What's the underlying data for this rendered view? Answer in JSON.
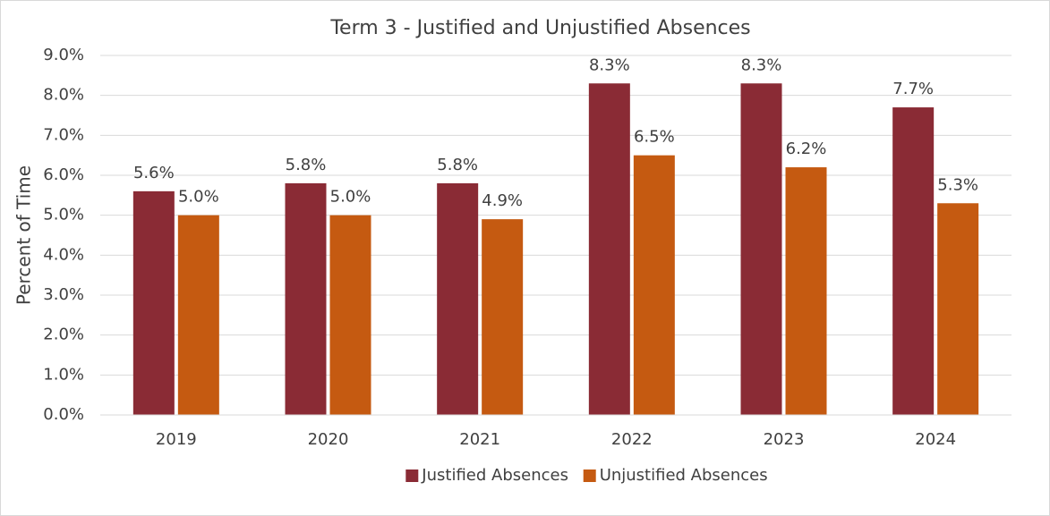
{
  "chart_data": {
    "type": "bar",
    "title": "Term 3 - Justified and Unjustified Absences",
    "y_label": "Percent of Time",
    "categories": [
      "2019",
      "2020",
      "2021",
      "2022",
      "2023",
      "2024"
    ],
    "series": [
      {
        "name": "Justified Absences",
        "color": "#8a2b35",
        "values": [
          5.6,
          5.8,
          5.8,
          8.3,
          8.3,
          7.7
        ],
        "value_labels": [
          "5.6%",
          "5.8%",
          "5.8%",
          "8.3%",
          "8.3%",
          "7.7%"
        ]
      },
      {
        "name": "Unjustified Absences",
        "color": "#c55a11",
        "values": [
          5.0,
          5.0,
          4.9,
          6.5,
          6.2,
          5.3
        ],
        "value_labels": [
          "5.0%",
          "5.0%",
          "4.9%",
          "6.5%",
          "6.2%",
          "5.3%"
        ]
      }
    ],
    "ylim": [
      0,
      9
    ],
    "yticks": [
      {
        "value": 0,
        "label": "0.0%"
      },
      {
        "value": 1,
        "label": "1.0%"
      },
      {
        "value": 2,
        "label": "2.0%"
      },
      {
        "value": 3,
        "label": "3.0%"
      },
      {
        "value": 4,
        "label": "4.0%"
      },
      {
        "value": 5,
        "label": "5.0%"
      },
      {
        "value": 6,
        "label": "6.0%"
      },
      {
        "value": 7,
        "label": "7.0%"
      },
      {
        "value": 8,
        "label": "8.0%"
      },
      {
        "value": 9,
        "label": "9.0%"
      }
    ],
    "grid": true,
    "legend": "bottom"
  }
}
